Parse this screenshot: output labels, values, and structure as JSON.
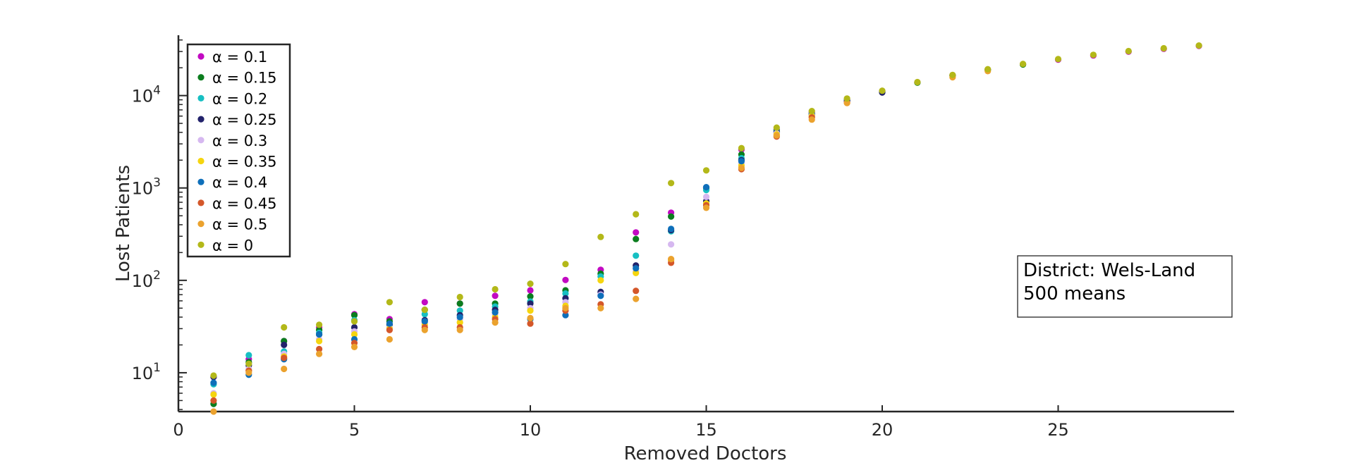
{
  "chart_data": {
    "type": "scatter",
    "xlabel": "Removed Doctors",
    "ylabel": "Lost Patients",
    "yscale": "log",
    "xlim": [
      0,
      30
    ],
    "ylim": [
      3.8,
      45000
    ],
    "xticks": [
      0,
      5,
      10,
      15,
      20,
      25
    ],
    "yticks": [
      {
        "value": 10,
        "base": "10",
        "exp": "1"
      },
      {
        "value": 100,
        "base": "10",
        "exp": "2"
      },
      {
        "value": 1000,
        "base": "10",
        "exp": "3"
      },
      {
        "value": 10000,
        "base": "10",
        "exp": "4"
      }
    ],
    "legend_position": "top-left",
    "annotation": {
      "lines": [
        "District: Wels-Land",
        "500 means"
      ],
      "position": "right"
    },
    "series": [
      {
        "name": "α = 0.1",
        "color": "#c20ac2",
        "values": [
          [
            1,
            9
          ],
          [
            2,
            14
          ],
          [
            3,
            22
          ],
          [
            4,
            31
          ],
          [
            5,
            43
          ],
          [
            6,
            38
          ],
          [
            7,
            58
          ],
          [
            8,
            56
          ],
          [
            9,
            68
          ],
          [
            10,
            78
          ],
          [
            11,
            101
          ],
          [
            12,
            130
          ],
          [
            13,
            330
          ],
          [
            14,
            540
          ],
          [
            15,
            1000
          ],
          [
            16,
            2600
          ],
          [
            17,
            4300
          ],
          [
            18,
            6600
          ],
          [
            19,
            9000
          ],
          [
            20,
            11100
          ],
          [
            21,
            13900
          ],
          [
            22,
            16600
          ],
          [
            23,
            19100
          ],
          [
            24,
            21800
          ],
          [
            25,
            24500
          ],
          [
            26,
            27200
          ],
          [
            27,
            29900
          ],
          [
            28,
            32100
          ],
          [
            29,
            34500
          ]
        ]
      },
      {
        "name": "α = 0.15",
        "color": "#0b7d1e",
        "values": [
          [
            1,
            4.6
          ],
          [
            2,
            13
          ],
          [
            3,
            22
          ],
          [
            4,
            29
          ],
          [
            5,
            42
          ],
          [
            6,
            36
          ],
          [
            7,
            48
          ],
          [
            8,
            56
          ],
          [
            9,
            56
          ],
          [
            10,
            67
          ],
          [
            11,
            78
          ],
          [
            12,
            118
          ],
          [
            13,
            280
          ],
          [
            14,
            490
          ],
          [
            15,
            1000
          ],
          [
            16,
            2300
          ],
          [
            17,
            4200
          ],
          [
            18,
            6400
          ],
          [
            19,
            8900
          ],
          [
            20,
            11000
          ],
          [
            21,
            13800
          ],
          [
            22,
            16500
          ],
          [
            23,
            19000
          ],
          [
            24,
            21700
          ]
        ]
      },
      {
        "name": "α = 0.2",
        "color": "#17bfc2",
        "values": [
          [
            1,
            7.5
          ],
          [
            2,
            15.5
          ],
          [
            3,
            17
          ],
          [
            4,
            27
          ],
          [
            5,
            37
          ],
          [
            6,
            33
          ],
          [
            7,
            43
          ],
          [
            8,
            47
          ],
          [
            9,
            52
          ],
          [
            10,
            59
          ],
          [
            11,
            72
          ],
          [
            12,
            110
          ],
          [
            13,
            185
          ],
          [
            14,
            340
          ],
          [
            15,
            950
          ],
          [
            16,
            2100
          ],
          [
            17,
            4100
          ],
          [
            18,
            6300
          ],
          [
            19,
            8800
          ]
        ]
      },
      {
        "name": "α = 0.25",
        "color": "#22226b",
        "values": [
          [
            1,
            9
          ],
          [
            2,
            12
          ],
          [
            3,
            20
          ],
          [
            4,
            26
          ],
          [
            5,
            31
          ],
          [
            6,
            33
          ],
          [
            7,
            37
          ],
          [
            8,
            42
          ],
          [
            9,
            48
          ],
          [
            10,
            56
          ],
          [
            11,
            64
          ],
          [
            12,
            75
          ],
          [
            13,
            145
          ],
          [
            14,
            350
          ],
          [
            15,
            720
          ],
          [
            16,
            2000
          ],
          [
            17,
            4000
          ],
          [
            18,
            6200
          ],
          [
            19,
            8700
          ],
          [
            20,
            10800
          ]
        ]
      },
      {
        "name": "α = 0.3",
        "color": "#d6b8f0",
        "values": [
          [
            1,
            6
          ],
          [
            2,
            11
          ],
          [
            3,
            16
          ],
          [
            4,
            23
          ],
          [
            5,
            28
          ],
          [
            6,
            31
          ],
          [
            7,
            35
          ],
          [
            8,
            38
          ],
          [
            9,
            43
          ],
          [
            10,
            50
          ],
          [
            11,
            58
          ],
          [
            12,
            70
          ],
          [
            13,
            125
          ],
          [
            14,
            245
          ],
          [
            15,
            800
          ],
          [
            16,
            1850
          ],
          [
            17,
            3900
          ],
          [
            18,
            6100
          ]
        ]
      },
      {
        "name": "α = 0.35",
        "color": "#f5d50f",
        "values": [
          [
            1,
            5.8
          ],
          [
            2,
            10.5
          ],
          [
            3,
            15
          ],
          [
            4,
            22
          ],
          [
            5,
            26
          ],
          [
            6,
            30
          ],
          [
            7,
            33
          ],
          [
            8,
            35
          ],
          [
            9,
            40
          ],
          [
            10,
            47
          ],
          [
            11,
            53
          ],
          [
            12,
            100
          ],
          [
            13,
            120
          ],
          [
            14,
            165
          ],
          [
            15,
            680
          ],
          [
            16,
            1750
          ],
          [
            17,
            3800
          ],
          [
            18,
            6000
          ]
        ]
      },
      {
        "name": "α = 0.4",
        "color": "#0e6fba",
        "values": [
          [
            1,
            7.8
          ],
          [
            2,
            9.5
          ],
          [
            3,
            14
          ],
          [
            4,
            26
          ],
          [
            5,
            23
          ],
          [
            6,
            34
          ],
          [
            7,
            36
          ],
          [
            8,
            40
          ],
          [
            9,
            45
          ],
          [
            10,
            38
          ],
          [
            11,
            42
          ],
          [
            12,
            68
          ],
          [
            13,
            135
          ],
          [
            14,
            360
          ],
          [
            15,
            1020
          ],
          [
            16,
            1950
          ]
        ]
      },
      {
        "name": "α = 0.45",
        "color": "#d4572a",
        "values": [
          [
            1,
            5
          ],
          [
            2,
            10.5
          ],
          [
            3,
            14.5
          ],
          [
            4,
            18
          ],
          [
            5,
            21
          ],
          [
            6,
            29
          ],
          [
            7,
            31
          ],
          [
            8,
            31
          ],
          [
            9,
            38
          ],
          [
            10,
            34
          ],
          [
            11,
            47
          ],
          [
            12,
            55
          ],
          [
            13,
            77
          ],
          [
            14,
            155
          ],
          [
            15,
            650
          ],
          [
            16,
            1600
          ],
          [
            17,
            3600
          ],
          [
            18,
            5800
          ],
          [
            19,
            8400
          ]
        ]
      },
      {
        "name": "α = 0.5",
        "color": "#eba22e",
        "values": [
          [
            1,
            3.8
          ],
          [
            2,
            10
          ],
          [
            3,
            11
          ],
          [
            4,
            16
          ],
          [
            5,
            19
          ],
          [
            6,
            23
          ],
          [
            7,
            29
          ],
          [
            8,
            29
          ],
          [
            9,
            35
          ],
          [
            10,
            39
          ],
          [
            11,
            50
          ],
          [
            12,
            50
          ],
          [
            13,
            63
          ],
          [
            14,
            170
          ],
          [
            15,
            610
          ],
          [
            16,
            1650
          ],
          [
            17,
            3700
          ],
          [
            18,
            5500
          ],
          [
            19,
            8300
          ],
          [
            22,
            15800
          ],
          [
            23,
            18400
          ]
        ]
      },
      {
        "name": "α = 0",
        "color": "#b3b819",
        "values": [
          [
            1,
            9.3
          ],
          [
            2,
            12.5
          ],
          [
            3,
            31
          ],
          [
            4,
            33
          ],
          [
            5,
            36
          ],
          [
            6,
            58
          ],
          [
            7,
            48
          ],
          [
            8,
            66
          ],
          [
            9,
            80
          ],
          [
            10,
            92
          ],
          [
            11,
            150
          ],
          [
            12,
            295
          ],
          [
            13,
            520
          ],
          [
            14,
            1130
          ],
          [
            15,
            1550
          ],
          [
            16,
            2700
          ],
          [
            17,
            4500
          ],
          [
            18,
            6800
          ],
          [
            19,
            9300
          ],
          [
            20,
            11300
          ],
          [
            21,
            14000
          ],
          [
            22,
            16700
          ],
          [
            23,
            19300
          ],
          [
            24,
            22000
          ],
          [
            25,
            24800
          ],
          [
            26,
            27600
          ],
          [
            27,
            30300
          ],
          [
            28,
            32500
          ],
          [
            29,
            34800
          ]
        ]
      }
    ]
  }
}
